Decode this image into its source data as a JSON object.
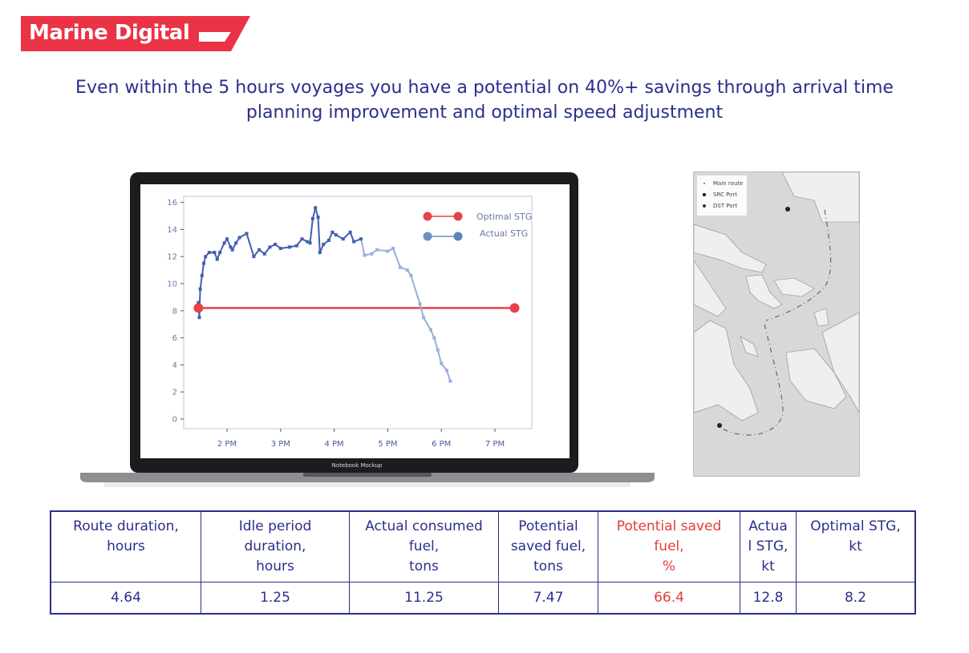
{
  "logo": {
    "text": "Marine Digital",
    "color": "#ea3345"
  },
  "headline": {
    "line1": "Even within the 5 hours voyages you have a potential on 40%+ savings through arrival time",
    "line2": "planning improvement and optimal speed adjustment"
  },
  "laptop": {
    "label": "Notebook Mockup"
  },
  "chart_data": {
    "type": "line",
    "title": "",
    "xlabel": "",
    "ylabel": "",
    "ylim": [
      -0.8,
      16.4
    ],
    "yticks": [
      0,
      2,
      4,
      6,
      8,
      10,
      12,
      14,
      16
    ],
    "xticks": [
      "2 PM",
      "3 PM",
      "4 PM",
      "5 PM",
      "6 PM",
      "7 PM"
    ],
    "xlim": [
      "13:10",
      "19:40"
    ],
    "legend": "top-right",
    "grid": false,
    "series": [
      {
        "name": "Optimal STG",
        "color": "#e8414a",
        "points": [
          [
            "13:28",
            8.2
          ],
          [
            "19:22",
            8.2
          ]
        ]
      },
      {
        "name": "Actual STG",
        "color": "#3f5fb0",
        "faded_color": "#9aaedb",
        "points": [
          [
            "13:28",
            8.6
          ],
          [
            "13:29",
            7.5
          ],
          [
            "13:30",
            9.6
          ],
          [
            "13:32",
            10.6
          ],
          [
            "13:34",
            11.5
          ],
          [
            "13:36",
            12.0
          ],
          [
            "13:40",
            12.3
          ],
          [
            "13:46",
            12.3
          ],
          [
            "13:49",
            11.8
          ],
          [
            "13:52",
            12.3
          ],
          [
            "13:57",
            13.0
          ],
          [
            "14:00",
            13.3
          ],
          [
            "14:04",
            12.7
          ],
          [
            "14:06",
            12.5
          ],
          [
            "14:10",
            13.0
          ],
          [
            "14:14",
            13.4
          ],
          [
            "14:22",
            13.7
          ],
          [
            "14:30",
            12.0
          ],
          [
            "14:36",
            12.5
          ],
          [
            "14:42",
            12.2
          ],
          [
            "14:48",
            12.7
          ],
          [
            "14:54",
            12.9
          ],
          [
            "15:00",
            12.6
          ],
          [
            "15:10",
            12.7
          ],
          [
            "15:18",
            12.8
          ],
          [
            "15:24",
            13.3
          ],
          [
            "15:30",
            13.1
          ],
          [
            "15:33",
            13.0
          ],
          [
            "15:36",
            14.8
          ],
          [
            "15:39",
            15.6
          ],
          [
            "15:42",
            14.9
          ],
          [
            "15:44",
            12.3
          ],
          [
            "15:48",
            12.9
          ],
          [
            "15:54",
            13.2
          ],
          [
            "15:58",
            13.8
          ],
          [
            "16:02",
            13.6
          ],
          [
            "16:10",
            13.3
          ],
          [
            "16:18",
            13.8
          ],
          [
            "16:22",
            13.1
          ],
          [
            "16:30",
            13.3
          ],
          [
            "16:34",
            12.1
          ],
          [
            "16:42",
            12.2
          ],
          [
            "16:48",
            12.5
          ],
          [
            "17:00",
            12.4
          ],
          [
            "17:06",
            12.6
          ],
          [
            "17:14",
            11.2
          ],
          [
            "17:22",
            11.0
          ],
          [
            "17:26",
            10.6
          ],
          [
            "17:36",
            8.5
          ],
          [
            "17:40",
            7.5
          ],
          [
            "17:48",
            6.6
          ],
          [
            "17:52",
            6.0
          ],
          [
            "17:56",
            5.1
          ],
          [
            "18:00",
            4.1
          ],
          [
            "18:06",
            3.6
          ],
          [
            "18:10",
            2.8
          ]
        ]
      }
    ]
  },
  "map": {
    "legend": [
      {
        "label": "Main route",
        "marker": "dot-small"
      },
      {
        "label": "SRC Port",
        "marker": "dot"
      },
      {
        "label": "DST Port",
        "marker": "dot"
      }
    ]
  },
  "table": {
    "headers": [
      "Route duration,\nhours",
      "Idle period\nduration,\nhours",
      "Actual consumed\nfuel,\ntons",
      "Potential\nsaved fuel,\ntons",
      "Potential saved\nfuel,\n%",
      "Actua\nl STG,\nkt",
      "Optimal STG,\nkt"
    ],
    "values": [
      "4.64",
      "1.25",
      "11.25",
      "7.47",
      "66.4",
      "12.8",
      "8.2"
    ],
    "highlight_color": "#e53b3b"
  }
}
